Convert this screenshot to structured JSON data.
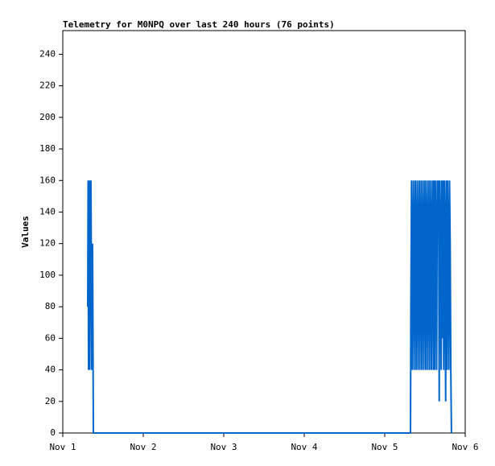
{
  "chart_data": {
    "type": "line",
    "title": "Telemetry for M0NPQ over last 240 hours (76 points)",
    "y_label": "Values",
    "color": "#0066cc",
    "x": [
      0.31,
      0.315,
      0.32,
      0.325,
      0.33,
      0.335,
      0.34,
      0.35,
      0.36,
      0.37,
      0.38,
      4.32,
      4.325,
      4.333,
      4.341,
      4.349,
      4.357,
      4.365,
      4.373,
      4.381,
      4.389,
      4.397,
      4.405,
      4.413,
      4.421,
      4.429,
      4.437,
      4.445,
      4.453,
      4.461,
      4.469,
      4.477,
      4.485,
      4.493,
      4.501,
      4.509,
      4.517,
      4.525,
      4.533,
      4.541,
      4.549,
      4.557,
      4.565,
      4.573,
      4.581,
      4.589,
      4.597,
      4.605,
      4.613,
      4.621,
      4.629,
      4.637,
      4.645,
      4.653,
      4.661,
      4.669,
      4.677,
      4.685,
      4.693,
      4.701,
      4.709,
      4.717,
      4.725,
      4.733,
      4.741,
      4.749,
      4.757,
      4.765,
      4.773,
      4.781,
      4.789,
      4.797,
      4.805,
      4.813,
      4.821,
      4.829
    ],
    "values": [
      80,
      160,
      40,
      120,
      160,
      40,
      120,
      160,
      40,
      120,
      0,
      0,
      80,
      160,
      40,
      120,
      160,
      40,
      120,
      160,
      40,
      120,
      160,
      40,
      120,
      160,
      40,
      120,
      160,
      40,
      120,
      160,
      40,
      120,
      160,
      40,
      120,
      160,
      40,
      120,
      160,
      40,
      120,
      160,
      40,
      120,
      160,
      40,
      160,
      40,
      160,
      120,
      40,
      160,
      140,
      160,
      20,
      160,
      120,
      40,
      160,
      60,
      160,
      40,
      160,
      120,
      20,
      160,
      40,
      160,
      120,
      40,
      160,
      120,
      40,
      0
    ],
    "xlim": [
      0,
      5
    ],
    "xticks": [
      {
        "value": 0,
        "label": "Nov 1"
      },
      {
        "value": 1,
        "label": "Nov 2"
      },
      {
        "value": 2,
        "label": "Nov 3"
      },
      {
        "value": 3,
        "label": "Nov 4"
      },
      {
        "value": 4,
        "label": "Nov 5"
      },
      {
        "value": 5,
        "label": "Nov 6"
      }
    ],
    "ylim": [
      0,
      255
    ],
    "yticks": [
      0,
      20,
      40,
      60,
      80,
      100,
      120,
      140,
      160,
      180,
      200,
      220,
      240
    ]
  }
}
